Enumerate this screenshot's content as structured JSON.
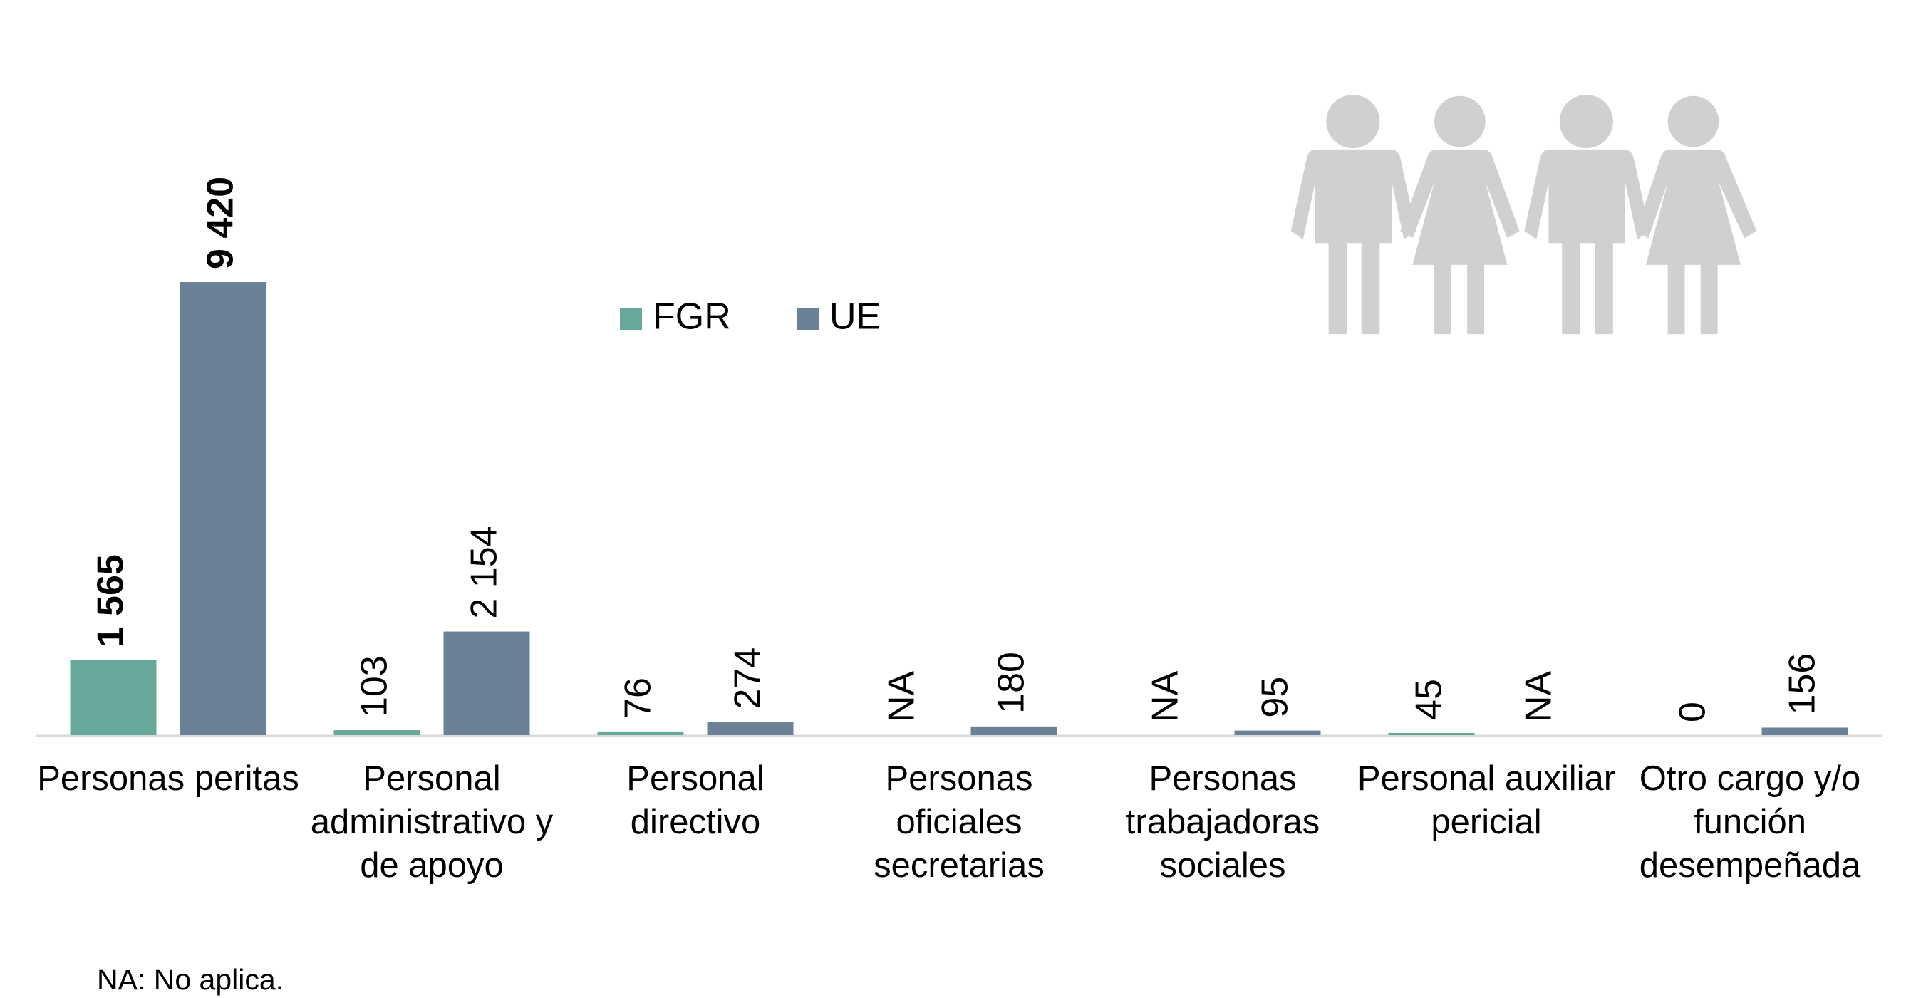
{
  "chart_data": {
    "type": "bar",
    "categories": [
      "Personas peritas",
      "Personal administrativo y de apoyo",
      "Personal directivo",
      "Personas oficiales secretarias",
      "Personas trabajadoras sociales",
      "Personal auxiliar pericial",
      "Otro cargo y/o función desempeñada"
    ],
    "series": [
      {
        "name": "FGR",
        "color": "#68a89a",
        "values": [
          1565,
          103,
          76,
          null,
          null,
          45,
          0
        ],
        "value_labels": [
          "1 565",
          "103",
          "76",
          "NA",
          "NA",
          "45",
          "0"
        ]
      },
      {
        "name": "UE",
        "color": "#6b8198",
        "values": [
          9420,
          2154,
          274,
          180,
          95,
          null,
          156
        ],
        "value_labels": [
          "9 420",
          "2 154",
          "274",
          "180",
          "95",
          "NA",
          "156"
        ]
      }
    ],
    "note": "NA: No aplica."
  }
}
